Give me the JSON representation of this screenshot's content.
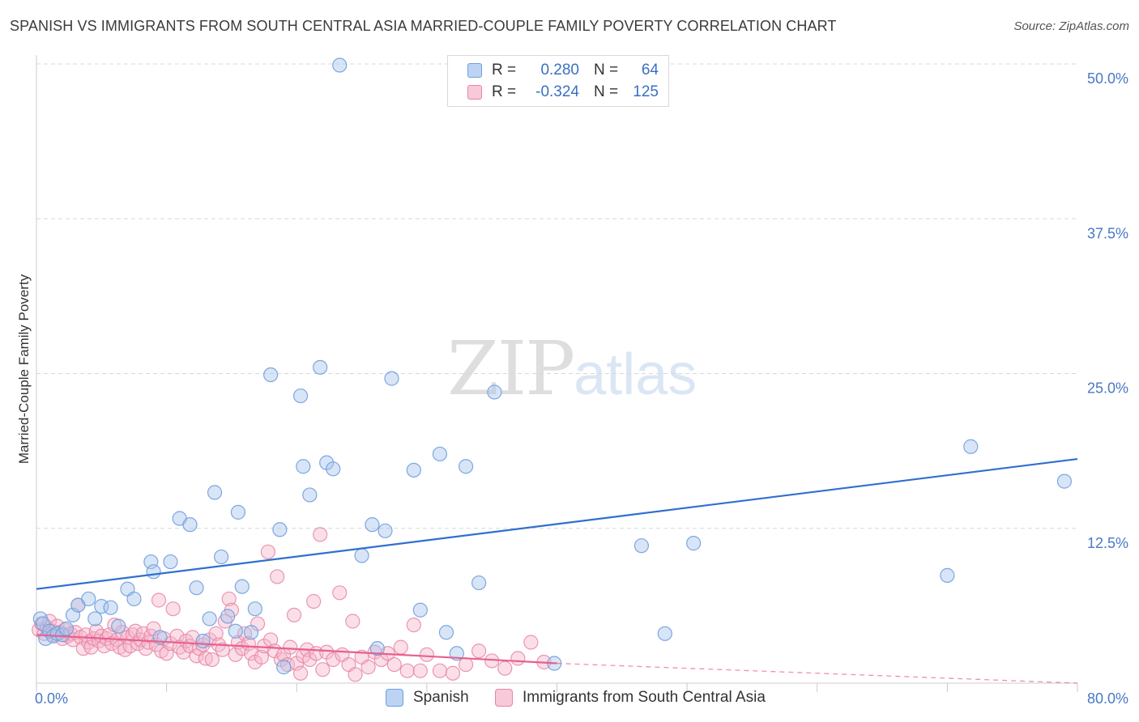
{
  "header": {
    "title": "SPANISH VS IMMIGRANTS FROM SOUTH CENTRAL ASIA MARRIED-COUPLE FAMILY POVERTY CORRELATION CHART",
    "source": "Source: ZipAtlas.com"
  },
  "legend": {
    "rows": [
      {
        "r_label": "R =",
        "r_value": "0.280",
        "n_label": "N =",
        "n_value": "64"
      },
      {
        "r_label": "R =",
        "r_value": "-0.324",
        "n_label": "N =",
        "n_value": "125"
      }
    ]
  },
  "bottom_legend": {
    "spanish": "Spanish",
    "immigrants": "Immigrants from South Central Asia"
  },
  "watermark": {
    "zip": "ZIP",
    "atlas": "atlas"
  },
  "colors": {
    "spanish_fill": "#a9c6ee",
    "spanish_stroke": "#6f9fdd",
    "spanish_line": "#2f6fcf",
    "immigrants_fill": "#f5b7cb",
    "immigrants_stroke": "#e985a5",
    "immigrants_line": "#e8608e",
    "grid": "#d8d8d8",
    "tick_text": "#4a78c4"
  },
  "chart_data": {
    "type": "scatter",
    "title": "SPANISH VS IMMIGRANTS FROM SOUTH CENTRAL ASIA MARRIED-COUPLE FAMILY POVERTY CORRELATION CHART",
    "xlabel": "",
    "ylabel": "Married-Couple Family Poverty",
    "xlim": [
      0,
      80
    ],
    "ylim": [
      0,
      50
    ],
    "x_tick_labels": [
      "0.0%",
      "80.0%"
    ],
    "y_ticks": [
      12.5,
      25.0,
      37.5,
      50.0
    ],
    "y_tick_labels": [
      "12.5%",
      "25.0%",
      "37.5%",
      "50.0%"
    ],
    "grid": true,
    "legend_position": "top-center",
    "series": [
      {
        "name": "Spanish",
        "r": 0.28,
        "n": 64,
        "trend": {
          "x0": 0,
          "y0": 7.6,
          "x1": 80,
          "y1": 18.1
        },
        "points": [
          [
            0.3,
            5.2
          ],
          [
            0.5,
            4.8
          ],
          [
            0.7,
            3.6
          ],
          [
            1.0,
            4.2
          ],
          [
            1.3,
            3.8
          ],
          [
            1.6,
            4.0
          ],
          [
            2.0,
            3.9
          ],
          [
            2.3,
            4.4
          ],
          [
            2.8,
            5.5
          ],
          [
            3.2,
            6.3
          ],
          [
            4.0,
            6.8
          ],
          [
            4.5,
            5.2
          ],
          [
            5.0,
            6.2
          ],
          [
            5.7,
            6.1
          ],
          [
            6.3,
            4.6
          ],
          [
            7.0,
            7.6
          ],
          [
            7.5,
            6.8
          ],
          [
            8.8,
            9.8
          ],
          [
            9.0,
            9.0
          ],
          [
            9.5,
            3.7
          ],
          [
            10.3,
            9.8
          ],
          [
            11.0,
            13.3
          ],
          [
            11.8,
            12.8
          ],
          [
            12.3,
            7.7
          ],
          [
            12.8,
            3.4
          ],
          [
            13.3,
            5.2
          ],
          [
            13.7,
            15.4
          ],
          [
            14.2,
            10.2
          ],
          [
            14.7,
            5.4
          ],
          [
            15.3,
            4.2
          ],
          [
            15.5,
            13.8
          ],
          [
            15.8,
            7.8
          ],
          [
            16.5,
            4.1
          ],
          [
            16.8,
            6.0
          ],
          [
            18.0,
            24.9
          ],
          [
            18.7,
            12.4
          ],
          [
            19.0,
            1.3
          ],
          [
            20.3,
            23.2
          ],
          [
            20.5,
            17.5
          ],
          [
            21.0,
            15.2
          ],
          [
            21.8,
            25.5
          ],
          [
            22.3,
            17.8
          ],
          [
            22.8,
            17.3
          ],
          [
            23.3,
            49.9
          ],
          [
            25.0,
            10.3
          ],
          [
            25.8,
            12.8
          ],
          [
            26.2,
            2.8
          ],
          [
            26.8,
            12.3
          ],
          [
            27.3,
            24.6
          ],
          [
            29.0,
            17.2
          ],
          [
            29.5,
            5.9
          ],
          [
            31.0,
            18.5
          ],
          [
            31.5,
            4.1
          ],
          [
            32.3,
            2.4
          ],
          [
            33.0,
            17.5
          ],
          [
            34.0,
            8.1
          ],
          [
            35.2,
            23.5
          ],
          [
            39.8,
            1.6
          ],
          [
            46.5,
            11.1
          ],
          [
            48.3,
            4.0
          ],
          [
            50.5,
            11.3
          ],
          [
            70.0,
            8.7
          ],
          [
            71.8,
            19.1
          ],
          [
            79.0,
            16.3
          ]
        ]
      },
      {
        "name": "Immigrants from South Central Asia",
        "r": -0.324,
        "n": 125,
        "trend": {
          "x0": 0,
          "y0": 3.9,
          "x1": 40,
          "y1": 1.6
        },
        "trend_dashed": {
          "x0": 40,
          "y0": 1.6,
          "x1": 80,
          "y1": -0.8
        },
        "points": [
          [
            0.2,
            4.3
          ],
          [
            0.4,
            4.8
          ],
          [
            0.6,
            4.0
          ],
          [
            0.8,
            4.5
          ],
          [
            1.0,
            5.0
          ],
          [
            1.2,
            4.2
          ],
          [
            1.4,
            3.9
          ],
          [
            1.6,
            4.6
          ],
          [
            1.8,
            4.1
          ],
          [
            2.0,
            3.6
          ],
          [
            2.2,
            4.3
          ],
          [
            2.4,
            3.8
          ],
          [
            2.6,
            4.0
          ],
          [
            2.8,
            3.5
          ],
          [
            3.0,
            4.1
          ],
          [
            3.2,
            6.3
          ],
          [
            3.4,
            3.7
          ],
          [
            3.6,
            2.8
          ],
          [
            3.8,
            3.9
          ],
          [
            4.0,
            3.3
          ],
          [
            4.2,
            2.9
          ],
          [
            4.4,
            3.6
          ],
          [
            4.6,
            4.2
          ],
          [
            4.8,
            3.4
          ],
          [
            5.0,
            3.8
          ],
          [
            5.2,
            3.0
          ],
          [
            5.4,
            3.6
          ],
          [
            5.6,
            3.9
          ],
          [
            5.8,
            3.2
          ],
          [
            6.0,
            4.7
          ],
          [
            6.2,
            3.5
          ],
          [
            6.4,
            2.9
          ],
          [
            6.6,
            4.1
          ],
          [
            6.8,
            2.7
          ],
          [
            7.0,
            3.7
          ],
          [
            7.2,
            3.0
          ],
          [
            7.4,
            3.9
          ],
          [
            7.6,
            4.2
          ],
          [
            7.8,
            3.2
          ],
          [
            8.0,
            3.5
          ],
          [
            8.2,
            4.0
          ],
          [
            8.4,
            2.8
          ],
          [
            8.6,
            3.3
          ],
          [
            8.8,
            3.8
          ],
          [
            9.0,
            4.4
          ],
          [
            9.2,
            3.1
          ],
          [
            9.4,
            6.7
          ],
          [
            9.6,
            2.6
          ],
          [
            9.8,
            3.6
          ],
          [
            10.0,
            2.4
          ],
          [
            10.3,
            3.2
          ],
          [
            10.5,
            6.0
          ],
          [
            10.8,
            3.8
          ],
          [
            11.0,
            2.9
          ],
          [
            11.3,
            2.5
          ],
          [
            11.5,
            3.4
          ],
          [
            11.8,
            3.0
          ],
          [
            12.0,
            3.7
          ],
          [
            12.3,
            2.2
          ],
          [
            12.5,
            2.8
          ],
          [
            12.8,
            3.1
          ],
          [
            13.0,
            2.0
          ],
          [
            13.3,
            3.5
          ],
          [
            13.5,
            1.9
          ],
          [
            13.8,
            4.0
          ],
          [
            14.0,
            3.1
          ],
          [
            14.3,
            2.7
          ],
          [
            14.5,
            5.0
          ],
          [
            14.8,
            6.8
          ],
          [
            15.0,
            5.9
          ],
          [
            15.3,
            2.3
          ],
          [
            15.5,
            3.3
          ],
          [
            15.8,
            2.8
          ],
          [
            16.0,
            4.0
          ],
          [
            16.3,
            3.2
          ],
          [
            16.5,
            2.4
          ],
          [
            16.8,
            1.7
          ],
          [
            17.0,
            4.8
          ],
          [
            17.3,
            2.1
          ],
          [
            17.5,
            3.0
          ],
          [
            17.8,
            10.6
          ],
          [
            18.0,
            3.5
          ],
          [
            18.3,
            2.6
          ],
          [
            18.5,
            8.6
          ],
          [
            18.8,
            1.9
          ],
          [
            19.0,
            2.3
          ],
          [
            19.3,
            1.5
          ],
          [
            19.5,
            2.9
          ],
          [
            19.8,
            5.5
          ],
          [
            20.0,
            1.6
          ],
          [
            20.3,
            0.8
          ],
          [
            20.5,
            2.2
          ],
          [
            20.8,
            2.7
          ],
          [
            21.0,
            1.9
          ],
          [
            21.3,
            6.6
          ],
          [
            21.5,
            2.4
          ],
          [
            21.8,
            12.0
          ],
          [
            22.0,
            1.1
          ],
          [
            22.3,
            2.5
          ],
          [
            22.8,
            1.9
          ],
          [
            23.3,
            7.3
          ],
          [
            23.5,
            2.3
          ],
          [
            24.0,
            1.5
          ],
          [
            24.3,
            5.0
          ],
          [
            24.5,
            0.7
          ],
          [
            25.0,
            2.1
          ],
          [
            25.5,
            1.3
          ],
          [
            26.0,
            2.5
          ],
          [
            26.5,
            1.9
          ],
          [
            27.0,
            2.4
          ],
          [
            27.5,
            1.5
          ],
          [
            28.0,
            2.9
          ],
          [
            28.5,
            1.0
          ],
          [
            29.0,
            4.7
          ],
          [
            29.5,
            1.0
          ],
          [
            30.0,
            2.3
          ],
          [
            31.0,
            1.0
          ],
          [
            32.0,
            0.8
          ],
          [
            33.0,
            1.5
          ],
          [
            34.0,
            2.6
          ],
          [
            35.0,
            1.8
          ],
          [
            36.0,
            1.2
          ],
          [
            37.0,
            2.0
          ],
          [
            38.0,
            3.3
          ],
          [
            39.0,
            1.7
          ]
        ]
      }
    ]
  }
}
